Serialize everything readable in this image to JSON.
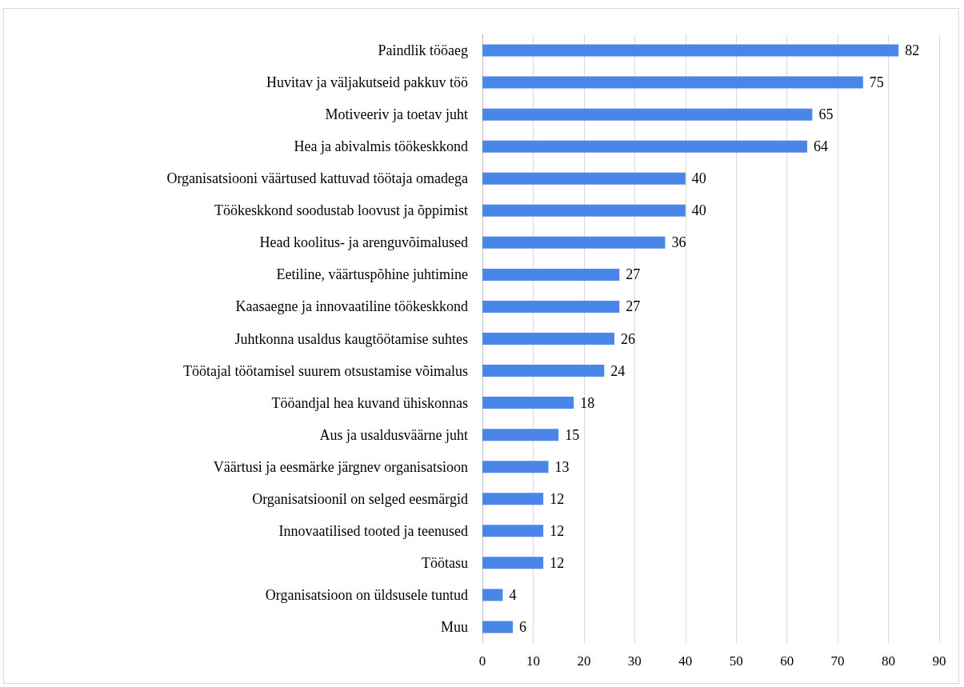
{
  "chart_data": {
    "type": "bar",
    "orientation": "horizontal",
    "categories": [
      "Paindlik tööaeg",
      "Huvitav ja väljakutseid pakkuv töö",
      "Motiveeriv ja toetav juht",
      "Hea ja abivalmis töökeskkond",
      "Organisatsiooni väärtused kattuvad töötaja omadega",
      "Töökeskkond soodustab loovust ja õppimist",
      "Head koolitus- ja arenguvõimalused",
      "Eetiline, väärtuspõhine juhtimine",
      "Kaasaegne ja innovaatiline töökeskkond",
      "Juhtkonna usaldus kaugtöötamise suhtes",
      "Töötajal töötamisel suurem otsustamise võimalus",
      "Tööandjal hea kuvand ühiskonnas",
      "Aus ja usaldusväärne juht",
      "Väärtusi ja eesmärke järgnev organisatsioon",
      "Organisatsioonil on selged eesmärgid",
      "Innovaatilised tooted ja teenused",
      "Töötasu",
      "Organisatsioon on üldsusele tuntud",
      "Muu"
    ],
    "values": [
      82,
      75,
      65,
      64,
      40,
      40,
      36,
      27,
      27,
      26,
      24,
      18,
      15,
      13,
      12,
      12,
      12,
      4,
      6
    ],
    "color": "#4a86e8",
    "xlim": [
      0,
      90
    ],
    "xticks": [
      0,
      10,
      20,
      30,
      40,
      50,
      60,
      70,
      80,
      90
    ],
    "grid": "x",
    "data_labels": true
  }
}
